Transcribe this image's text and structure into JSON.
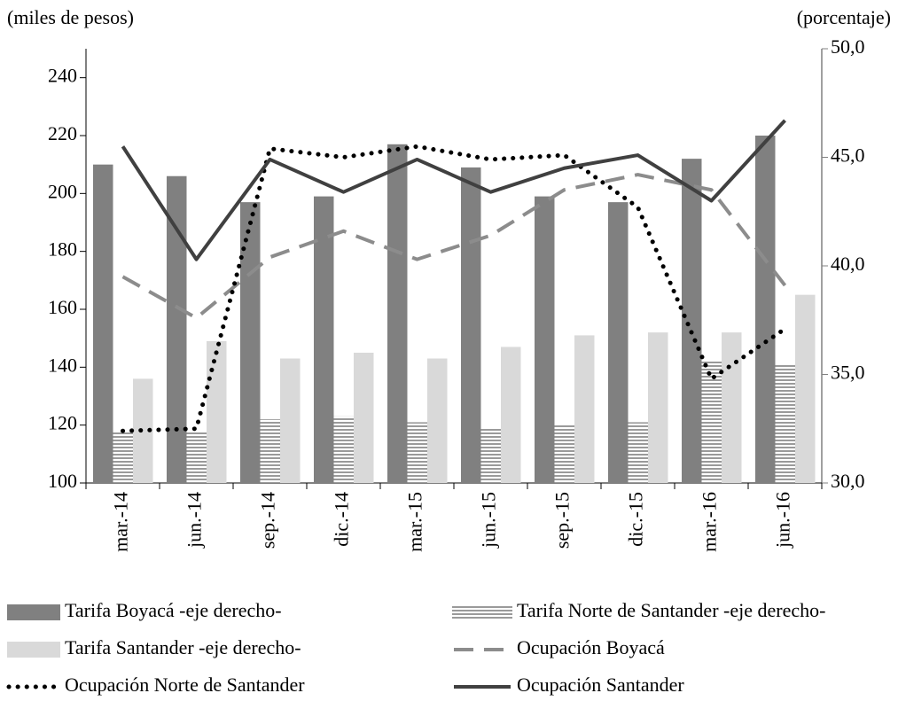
{
  "chart_data": {
    "type": "bar",
    "y_label": "(miles  de pesos)",
    "y2_label": "(porcentaje)",
    "categories": [
      "mar.-14",
      "jun.-14",
      "sep.-14",
      "dic.-14",
      "mar.-15",
      "jun.-15",
      "sep.-15",
      "dic.-15",
      "mar.-16",
      "jun.-16"
    ],
    "ylim": [
      100,
      250
    ],
    "yticks": [
      100,
      120,
      140,
      160,
      180,
      200,
      220,
      240
    ],
    "y2lim": [
      30,
      50
    ],
    "y2ticks": [
      {
        "value": 30,
        "label": "30,0"
      },
      {
        "value": 35,
        "label": "35,0"
      },
      {
        "value": 40,
        "label": "40,0"
      },
      {
        "value": 45,
        "label": "45,0"
      },
      {
        "value": 50,
        "label": "50,0"
      }
    ],
    "series": [
      {
        "name": "Tarifa Boyacá -eje derecho-",
        "type": "bar",
        "pattern": "solid",
        "color": "#808080",
        "values": [
          210,
          206,
          197,
          199,
          217,
          209,
          199,
          197,
          212,
          220
        ]
      },
      {
        "name": "Tarifa Norte de Santander -eje derecho-",
        "type": "bar",
        "pattern": "stripes",
        "color": "#9a9a9a",
        "values": [
          118,
          118,
          122,
          123,
          121,
          119,
          120,
          121,
          142,
          141
        ]
      },
      {
        "name": "Tarifa Santander -eje derecho-",
        "type": "bar",
        "pattern": "solid",
        "color": "#d9d9d9",
        "values": [
          136,
          149,
          143,
          145,
          143,
          147,
          151,
          152,
          152,
          165
        ]
      },
      {
        "name": "Ocupación Boyacá",
        "type": "line",
        "axis": "y2",
        "dash": "dashed",
        "color": "#8c8c8c",
        "values": [
          39.5,
          37.6,
          40.4,
          41.6,
          40.3,
          41.4,
          43.5,
          44.2,
          43.5,
          39.1
        ]
      },
      {
        "name": "Ocupación Norte de Santander",
        "type": "line",
        "axis": "y2",
        "dash": "dotted",
        "color": "#000000",
        "values": [
          32.4,
          32.5,
          45.4,
          45.0,
          45.5,
          44.9,
          45.1,
          42.7,
          34.8,
          37.1
        ]
      },
      {
        "name": "Ocupación Santander",
        "type": "line",
        "axis": "y2",
        "dash": "solid",
        "color": "#404040",
        "values": [
          45.5,
          40.3,
          44.9,
          43.4,
          44.9,
          43.4,
          44.5,
          45.1,
          43.0,
          46.7
        ]
      }
    ]
  }
}
